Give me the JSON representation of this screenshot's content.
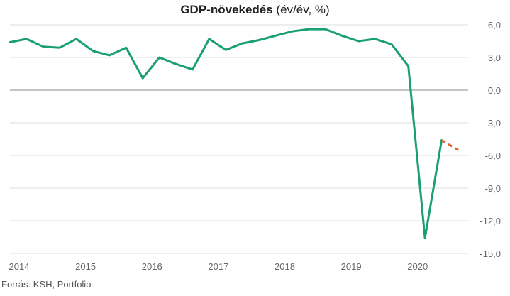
{
  "chart_data": {
    "type": "line",
    "title_bold": "GDP-növekedés",
    "title_rest": " (év/év, %)",
    "xlabel": "",
    "ylabel": "",
    "ylim": [
      -15,
      6
    ],
    "yticks": [
      "6,0",
      "3,0",
      "0,0",
      "-3,0",
      "-6,0",
      "-9,0",
      "-12,0",
      "-15,0"
    ],
    "ytick_values": [
      6,
      3,
      0,
      -3,
      -6,
      -9,
      -12,
      -15
    ],
    "xlim": [
      2014,
      2020.9
    ],
    "xticks": [
      "2014",
      "2015",
      "2016",
      "2017",
      "2018",
      "2019",
      "2020"
    ],
    "xtick_values": [
      2014,
      2015,
      2016,
      2017,
      2018,
      2019,
      2020
    ],
    "grid": true,
    "legend": "none",
    "series": [
      {
        "style": "solid",
        "color": "#1a9e76",
        "x": [
          2014.0,
          2014.25,
          2014.5,
          2014.75,
          2015.0,
          2015.25,
          2015.5,
          2015.75,
          2016.0,
          2016.25,
          2016.5,
          2016.75,
          2017.0,
          2017.25,
          2017.5,
          2017.75,
          2018.0,
          2018.25,
          2018.5,
          2018.75,
          2019.0,
          2019.25,
          2019.5,
          2019.75,
          2020.0,
          2020.25,
          2020.5
        ],
        "y": [
          4.4,
          4.7,
          4.0,
          3.9,
          4.7,
          3.6,
          3.2,
          3.9,
          1.1,
          3.0,
          2.4,
          1.9,
          4.7,
          3.7,
          4.3,
          4.6,
          5.0,
          5.4,
          5.6,
          5.6,
          5.0,
          4.5,
          4.7,
          4.2,
          2.2,
          -13.6,
          -4.6
        ]
      },
      {
        "style": "dashed",
        "color": "#e8632b",
        "x": [
          2020.5,
          2020.75
        ],
        "y": [
          -4.6,
          -5.5
        ]
      }
    ],
    "source": "Forrás: KSH, Portfolio"
  }
}
